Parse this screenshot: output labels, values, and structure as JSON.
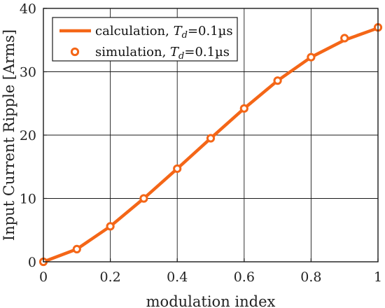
{
  "chart_data": {
    "type": "line",
    "title": "",
    "xlabel": "modulation index",
    "ylabel": "Input Current Ripple [Arms]",
    "xlim": [
      0,
      1
    ],
    "ylim": [
      0,
      40
    ],
    "xticks": [
      0,
      0.2,
      0.4,
      0.6,
      0.8,
      1
    ],
    "xtick_labels": [
      "0",
      "0.2",
      "0.4",
      "0.6",
      "0.8",
      "1"
    ],
    "yticks": [
      0,
      10,
      20,
      30,
      40
    ],
    "ytick_labels": [
      "0",
      "10",
      "20",
      "30",
      "40"
    ],
    "grid": true,
    "legend_position": "top-left",
    "colors": {
      "series": "#f46617",
      "grid": "#1a1a1a",
      "axis": "#1a1a1a"
    },
    "x": [
      0,
      0.1,
      0.2,
      0.3,
      0.4,
      0.5,
      0.6,
      0.7,
      0.8,
      0.9,
      1.0
    ],
    "series": [
      {
        "name": "calculation, Td=0.1µs",
        "legend_parts": {
          "prefix": "calculation, ",
          "var": "T",
          "sub": "d",
          "suffix": "=0.1µs"
        },
        "style": "line",
        "values": [
          0,
          2.0,
          5.6,
          10.0,
          14.7,
          19.5,
          24.2,
          28.6,
          32.3,
          35.0,
          36.9
        ]
      },
      {
        "name": "simulation, Td=0.1µs",
        "legend_parts": {
          "prefix": "simulation, ",
          "var": "T",
          "sub": "d",
          "suffix": "=0.1µs"
        },
        "style": "markers",
        "values": [
          0,
          2.0,
          5.6,
          10.0,
          14.7,
          19.5,
          24.2,
          28.6,
          32.3,
          35.3,
          37.0
        ]
      }
    ]
  }
}
